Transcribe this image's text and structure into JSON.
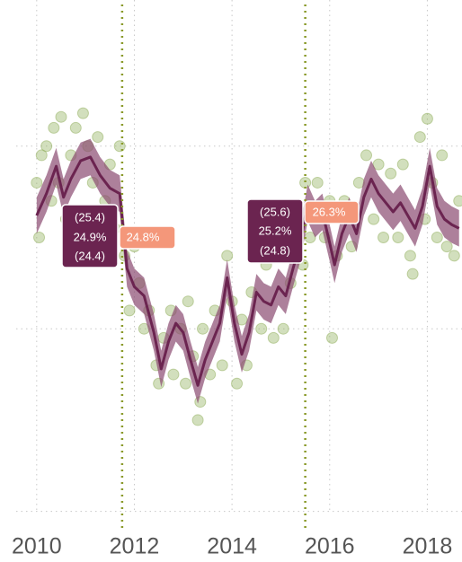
{
  "chart_data": {
    "type": "line",
    "xlim": [
      2009.58,
      2018.71
    ],
    "xticks": [
      2010,
      2012,
      2014,
      2016,
      2018
    ],
    "ylim": [
      23.4,
      26.3
    ],
    "yticks": [
      23.5,
      24.5,
      25.5
    ],
    "grid": true,
    "vlines": [
      2011.75,
      2015.5
    ],
    "series": [
      {
        "color": "#6b2450",
        "x": [
          2010.0,
          2010.2,
          2010.4,
          2010.55,
          2010.7,
          2010.9,
          2011.1,
          2011.3,
          2011.5,
          2011.7,
          2011.85,
          2012.0,
          2012.2,
          2012.4,
          2012.55,
          2012.7,
          2012.85,
          2013.0,
          2013.15,
          2013.3,
          2013.45,
          2013.6,
          2013.75,
          2013.9,
          2014.05,
          2014.2,
          2014.35,
          2014.5,
          2014.65,
          2014.8,
          2014.95,
          2015.1,
          2015.25,
          2015.4,
          2015.55,
          2015.7,
          2015.85,
          2016.0,
          2016.1,
          2016.25,
          2016.4,
          2016.55,
          2016.7,
          2016.85,
          2017.0,
          2017.15,
          2017.3,
          2017.45,
          2017.6,
          2017.75,
          2017.9,
          2018.05,
          2018.2,
          2018.35,
          2018.5,
          2018.65
        ],
        "values": [
          25.12,
          25.24,
          25.39,
          25.22,
          25.32,
          25.42,
          25.44,
          25.34,
          25.27,
          25.24,
          24.83,
          24.73,
          24.68,
          24.48,
          24.28,
          24.43,
          24.53,
          24.48,
          24.33,
          24.19,
          24.33,
          24.43,
          24.53,
          24.78,
          24.53,
          24.36,
          24.48,
          24.7,
          24.65,
          24.63,
          24.73,
          24.68,
          24.83,
          24.97,
          25.19,
          25.1,
          25.14,
          24.97,
          24.85,
          25.02,
          25.12,
          25.02,
          25.22,
          25.32,
          25.24,
          25.19,
          25.14,
          25.19,
          25.12,
          25.05,
          25.17,
          25.39,
          25.17,
          25.1,
          25.07,
          25.05
        ]
      }
    ],
    "band": {
      "color": "#8a4a70",
      "upper": [
        25.22,
        25.34,
        25.49,
        25.32,
        25.42,
        25.52,
        25.54,
        25.44,
        25.37,
        25.34,
        24.93,
        24.83,
        24.78,
        24.58,
        24.38,
        24.53,
        24.63,
        24.58,
        24.43,
        24.29,
        24.43,
        24.53,
        24.63,
        24.88,
        24.63,
        24.46,
        24.58,
        24.8,
        24.75,
        24.73,
        24.83,
        24.78,
        24.93,
        25.07,
        25.29,
        25.2,
        25.24,
        25.07,
        24.95,
        25.12,
        25.22,
        25.12,
        25.32,
        25.42,
        25.34,
        25.29,
        25.24,
        25.29,
        25.22,
        25.15,
        25.27,
        25.49,
        25.27,
        25.2,
        25.17,
        25.15
      ],
      "lower": [
        25.02,
        25.14,
        25.29,
        25.12,
        25.22,
        25.32,
        25.34,
        25.24,
        25.17,
        25.14,
        24.73,
        24.63,
        24.58,
        24.38,
        24.18,
        24.33,
        24.43,
        24.38,
        24.23,
        24.09,
        24.23,
        24.33,
        24.43,
        24.68,
        24.43,
        24.26,
        24.38,
        24.6,
        24.55,
        24.53,
        24.63,
        24.58,
        24.73,
        24.87,
        25.09,
        25.0,
        25.04,
        24.87,
        24.75,
        24.92,
        25.02,
        24.92,
        25.12,
        25.22,
        25.14,
        25.09,
        25.04,
        25.09,
        25.02,
        24.95,
        25.07,
        25.29,
        25.07,
        25.0,
        24.97,
        24.95
      ]
    },
    "points": {
      "color": "#8fae5a",
      "x": [
        2010.0,
        2010.05,
        2010.1,
        2010.2,
        2010.3,
        2010.35,
        2010.45,
        2010.5,
        2010.6,
        2010.7,
        2010.8,
        2010.95,
        2011.05,
        2011.15,
        2011.25,
        2011.4,
        2011.5,
        2011.6,
        2011.7,
        2011.8,
        2011.9,
        2012.0,
        2012.1,
        2012.2,
        2012.3,
        2012.45,
        2012.5,
        2012.6,
        2012.75,
        2012.8,
        2012.95,
        2013.05,
        2013.1,
        2013.2,
        2013.3,
        2013.35,
        2013.4,
        2013.55,
        2013.65,
        2013.8,
        2013.9,
        2014.0,
        2014.1,
        2014.2,
        2014.3,
        2014.4,
        2014.45,
        2014.6,
        2014.7,
        2014.85,
        2014.9,
        2015.05,
        2015.2,
        2015.3,
        2015.45,
        2015.5,
        2015.6,
        2015.75,
        2015.9,
        2016.0,
        2016.05,
        2016.15,
        2016.3,
        2016.45,
        2016.6,
        2016.75,
        2016.9,
        2017.0,
        2017.1,
        2017.25,
        2017.4,
        2017.5,
        2017.65,
        2017.7,
        2017.85,
        2017.95,
        2018.0,
        2018.1,
        2018.2,
        2018.3,
        2018.4,
        2018.55,
        2018.65
      ],
      "values": [
        25.3,
        25.0,
        25.45,
        25.5,
        25.2,
        25.6,
        25.3,
        25.66,
        25.1,
        25.45,
        25.6,
        25.68,
        25.5,
        25.3,
        25.55,
        25.2,
        25.4,
        25.05,
        25.5,
        24.9,
        24.6,
        24.95,
        24.75,
        24.5,
        24.6,
        24.3,
        24.2,
        24.45,
        24.6,
        24.25,
        24.5,
        24.2,
        24.65,
        24.35,
        24.0,
        24.1,
        24.5,
        24.25,
        24.6,
        24.3,
        24.9,
        24.65,
        24.2,
        24.55,
        24.3,
        24.7,
        24.9,
        24.5,
        24.85,
        24.45,
        24.95,
        24.5,
        24.75,
        25.0,
        24.85,
        25.3,
        25.0,
        25.3,
        25.0,
        25.2,
        24.45,
        24.9,
        25.2,
        24.95,
        25.3,
        25.45,
        25.1,
        25.4,
        25.0,
        25.35,
        25.0,
        25.4,
        24.9,
        24.8,
        25.55,
        25.1,
        25.65,
        25.3,
        25.0,
        25.45,
        24.95,
        24.9,
        25.2
      ]
    },
    "annotations": [
      {
        "lines": [
          "(25.4)",
          "24.9%",
          "(24.4)"
        ]
      },
      {
        "lines": [
          "24.8%"
        ]
      },
      {
        "lines": [
          "(25.6)",
          "25.2%",
          "(24.8)"
        ]
      },
      {
        "lines": [
          "26.3%"
        ]
      }
    ]
  }
}
